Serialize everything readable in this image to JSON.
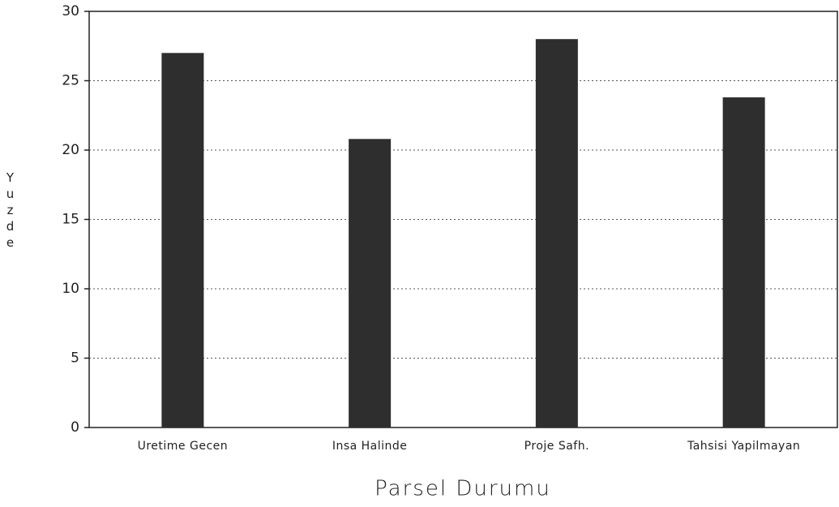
{
  "chart_data": {
    "type": "bar",
    "x_label": "Parsel Durumu",
    "y_label": "Yuzde",
    "categories": [
      "Uretime Gecen",
      "Insa Halinde",
      "Proje Safh.",
      "Tahsisi Yapilmayan"
    ],
    "values": [
      27,
      20.8,
      28,
      23.8
    ],
    "color": "#2e2e2e",
    "ylim": [
      0,
      30
    ],
    "yticks": [
      0,
      5,
      10,
      15,
      20,
      25,
      30
    ],
    "grid": true
  }
}
